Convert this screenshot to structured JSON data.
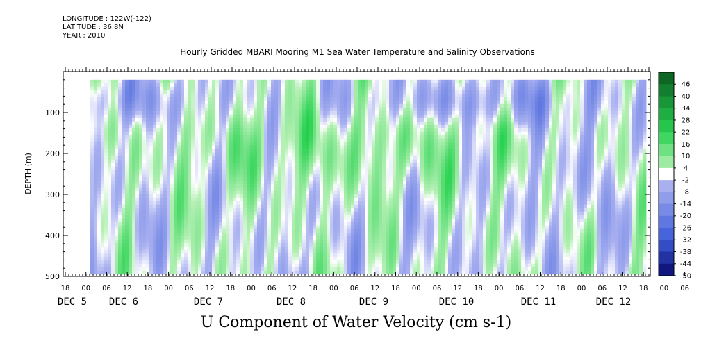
{
  "header": {
    "longitude": "LONGITUDE : 122W(-122)",
    "latitude": "LATITUDE : 36.8N",
    "year": "YEAR : 2010"
  },
  "title": "Hourly Gridded MBARI Mooring M1 Sea Water Temperature and Salinity Observations",
  "variable_label": "U Component of Water Velocity (cm s-1)",
  "colors": {
    "negative_dark": "#0a0a6e",
    "negative_mid": "#3a5ad8",
    "negative_light": "#a8b0f0",
    "zero_band": "#ffffff",
    "positive_light": "#b4f0b4",
    "positive_mid": "#28d250",
    "positive_dark": "#0a5a1e"
  },
  "chart_data": {
    "type": "heatmap",
    "title": "Hourly Gridded MBARI Mooring M1 Sea Water Temperature and Salinity Observations",
    "colorbar_label": "U Component of Water Velocity (cm s-1)",
    "ylabel": "DEPTH (m)",
    "ylim": [
      500,
      0
    ],
    "y_inverted": true,
    "y_ticks": [
      100,
      200,
      300,
      400,
      500
    ],
    "x_hour_ticks": [
      "18",
      "00",
      "06",
      "12",
      "18",
      "00",
      "06",
      "12",
      "18",
      "00",
      "06",
      "12",
      "18",
      "00",
      "06",
      "12",
      "18",
      "00",
      "06",
      "12",
      "18",
      "00",
      "06",
      "12",
      "18",
      "00",
      "06",
      "12",
      "18",
      "00",
      "06",
      "12",
      "18"
    ],
    "x_day_labels": [
      "DEC 5",
      "DEC 6",
      "DEC 7",
      "DEC 8",
      "DEC 9",
      "DEC 10",
      "DEC 11",
      "DEC 12"
    ],
    "colorbar_levels": [
      46,
      40,
      34,
      28,
      22,
      16,
      10,
      4,
      -2,
      -8,
      -14,
      -20,
      -26,
      -32,
      -38,
      -44,
      -50
    ],
    "data_depth_range": [
      20,
      490
    ],
    "data_time_range": [
      "DEC 5 02:00",
      "DEC 12 18:00"
    ]
  }
}
